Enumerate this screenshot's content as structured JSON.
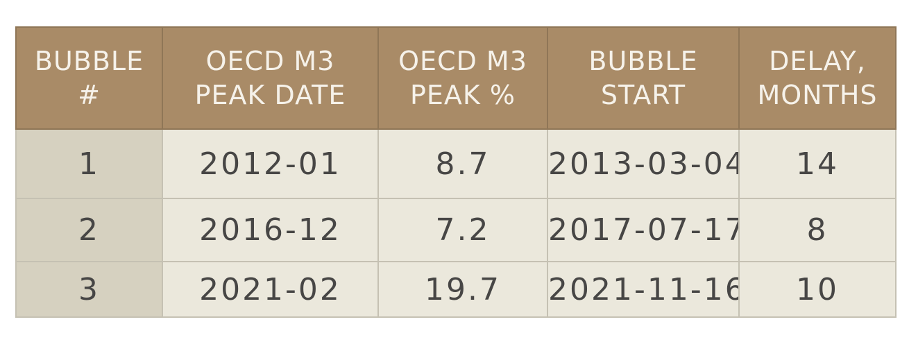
{
  "table": {
    "headers": [
      [
        "BUBBLE",
        "#"
      ],
      [
        "OECD M3",
        "PEAK DATE"
      ],
      [
        "OECD M3",
        "PEAK %"
      ],
      [
        "BUBBLE",
        "START"
      ],
      [
        "DELAY,",
        "MONTHS"
      ]
    ],
    "rows": [
      [
        "1",
        "2012-01",
        "8.7",
        "2013-03-04",
        "14"
      ],
      [
        "2",
        "2016-12",
        "7.2",
        "2017-07-17",
        "8"
      ],
      [
        "3",
        "2021-02",
        "19.7",
        "2021-11-16",
        "10"
      ]
    ],
    "colors": {
      "header_bg": "#a98b67",
      "header_text": "#f6f2ea",
      "cell_bg": "#ebe8dc",
      "first_col_bg": "#d6d1c0",
      "cell_text": "#474645"
    }
  }
}
